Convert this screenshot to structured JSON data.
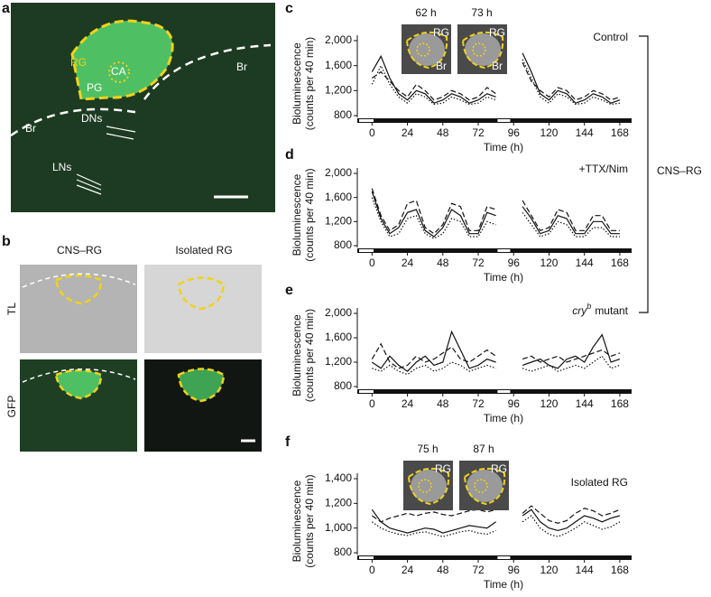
{
  "panel_a": {
    "letter": "a",
    "rg": "RG",
    "ca": "CA",
    "pg": "PG",
    "br": [
      "Br",
      "Br"
    ],
    "dns": "DNs",
    "lns": "LNs"
  },
  "panel_b": {
    "letter": "b",
    "columns": [
      "CNS–RG",
      "Isolated RG"
    ],
    "rows": [
      "TL",
      "GFP"
    ]
  },
  "bracket_label": "CNS–RG",
  "chart_data": [
    {
      "type": "line",
      "letter": "c",
      "annotation": [
        "Control"
      ],
      "insets": [
        {
          "time": "62 h",
          "labels": [
            "RG",
            "Br"
          ]
        },
        {
          "time": "73 h",
          "labels": [
            "RG",
            "Br"
          ]
        }
      ],
      "ylabel": [
        "Bioluminescence",
        "(counts per 40 min)"
      ],
      "xlabel": "Time (h)",
      "xlim": [
        -10,
        176
      ],
      "xticks": [
        0,
        24,
        48,
        72,
        96,
        120,
        144,
        168
      ],
      "ylim": [
        800,
        2000
      ],
      "yticks": [
        800,
        {
          "value": 1200,
          "label": "1,200"
        },
        {
          "value": 1600,
          "label": "1,600"
        },
        {
          "value": 2000,
          "label": "2,000"
        }
      ],
      "x": [
        0,
        6,
        12,
        18,
        24,
        30,
        36,
        42,
        48,
        54,
        60,
        66,
        72,
        78,
        84,
        90,
        96,
        102,
        108,
        114,
        120,
        126,
        132,
        138,
        144,
        150,
        156,
        162,
        168
      ],
      "series": [
        {
          "color": "#111111",
          "style": "solid",
          "values": [
            1500,
            1750,
            1400,
            1150,
            1050,
            1200,
            1150,
            1000,
            1050,
            1150,
            1100,
            1000,
            1050,
            1150,
            1100,
            null,
            null,
            1800,
            1500,
            1150,
            1050,
            1200,
            1150,
            1000,
            1050,
            1150,
            1100,
            1000,
            1050
          ]
        },
        {
          "color": "#111111",
          "style": "dotted",
          "values": [
            1300,
            1600,
            1300,
            1100,
            1000,
            1150,
            1100,
            980,
            1000,
            1100,
            1050,
            980,
            1000,
            1100,
            1050,
            null,
            null,
            1700,
            1400,
            1100,
            1000,
            1150,
            1100,
            980,
            1000,
            1100,
            1050,
            980,
            1000
          ]
        },
        {
          "color": "#111111",
          "style": "dashed",
          "values": [
            1400,
            1500,
            1350,
            1200,
            1100,
            1300,
            1200,
            1050,
            1100,
            1200,
            1150,
            1050,
            1100,
            1250,
            1150,
            null,
            null,
            1650,
            1350,
            1200,
            1100,
            1250,
            1200,
            1050,
            1100,
            1200,
            1150,
            1050,
            1100
          ]
        }
      ]
    },
    {
      "type": "line",
      "letter": "d",
      "annotation": [
        "+TTX/Nim"
      ],
      "ylabel": [
        "Bioluminescence",
        "(counts per 40 min)"
      ],
      "xlabel": "Time (h)",
      "xlim": [
        -10,
        176
      ],
      "xticks": [
        0,
        24,
        48,
        72,
        96,
        120,
        144,
        168
      ],
      "ylim": [
        800,
        2000
      ],
      "yticks": [
        800,
        {
          "value": 1200,
          "label": "1,200"
        },
        {
          "value": 1600,
          "label": "1,600"
        },
        {
          "value": 2000,
          "label": "2,000"
        }
      ],
      "x": [
        0,
        6,
        12,
        18,
        24,
        30,
        36,
        42,
        48,
        54,
        60,
        66,
        72,
        78,
        84,
        90,
        96,
        102,
        108,
        114,
        120,
        126,
        132,
        138,
        144,
        150,
        156,
        162,
        168
      ],
      "series": [
        {
          "color": "#111111",
          "style": "solid",
          "values": [
            1700,
            1250,
            1000,
            1100,
            1350,
            1400,
            1050,
            950,
            1100,
            1400,
            1300,
            1000,
            1000,
            1350,
            1300,
            null,
            null,
            1450,
            1250,
            1000,
            1050,
            1300,
            1250,
            1000,
            1000,
            1200,
            1200,
            1000,
            1000
          ]
        },
        {
          "color": "#111111",
          "style": "dotted",
          "values": [
            1600,
            1200,
            950,
            1000,
            1250,
            1300,
            1000,
            920,
            1000,
            1250,
            1200,
            950,
            950,
            1200,
            1150,
            null,
            null,
            1350,
            1150,
            950,
            1000,
            1200,
            1150,
            950,
            950,
            1100,
            1100,
            950,
            950
          ]
        },
        {
          "color": "#111111",
          "style": "dashed",
          "values": [
            1750,
            1300,
            1050,
            1150,
            1500,
            1550,
            1100,
            1000,
            1150,
            1500,
            1450,
            1050,
            1050,
            1450,
            1400,
            null,
            null,
            1550,
            1300,
            1050,
            1100,
            1400,
            1350,
            1050,
            1050,
            1300,
            1300,
            1050,
            1050
          ]
        }
      ]
    },
    {
      "type": "line",
      "letter": "e",
      "annotation": [
        "cry",
        "b",
        "mutant"
      ],
      "ylabel": [
        "Bioluminescence",
        "(counts per 40 min)"
      ],
      "xlabel": "Time (h)",
      "xlim": [
        -10,
        176
      ],
      "xticks": [
        0,
        24,
        48,
        72,
        96,
        120,
        144,
        168
      ],
      "ylim": [
        800,
        2000
      ],
      "yticks": [
        800,
        {
          "value": 1200,
          "label": "1,200"
        },
        {
          "value": 1600,
          "label": "1,600"
        },
        {
          "value": 2000,
          "label": "2,000"
        }
      ],
      "x": [
        0,
        6,
        12,
        18,
        24,
        30,
        36,
        42,
        48,
        54,
        60,
        66,
        72,
        78,
        84,
        90,
        96,
        102,
        108,
        114,
        120,
        126,
        132,
        138,
        144,
        150,
        156,
        162,
        168
      ],
      "series": [
        {
          "color": "#111111",
          "style": "solid",
          "values": [
            1200,
            1100,
            1300,
            1150,
            1050,
            1200,
            1300,
            1150,
            1200,
            1700,
            1400,
            1100,
            1150,
            1250,
            1200,
            null,
            null,
            1150,
            1200,
            1250,
            1150,
            1100,
            1250,
            1300,
            1200,
            1450,
            1650,
            1200,
            1250
          ]
        },
        {
          "color": "#111111",
          "style": "dotted",
          "values": [
            1100,
            1050,
            1150,
            1050,
            1000,
            1100,
            1150,
            1050,
            1100,
            1200,
            1150,
            1050,
            1100,
            1150,
            1100,
            null,
            null,
            1100,
            1050,
            1100,
            1150,
            1050,
            1100,
            1150,
            1100,
            1200,
            1300,
            1100,
            1150
          ]
        },
        {
          "color": "#111111",
          "style": "dashed",
          "values": [
            1250,
            1500,
            1200,
            1100,
            1150,
            1300,
            1200,
            1250,
            1350,
            1450,
            1250,
            1200,
            1300,
            1400,
            1300,
            null,
            null,
            1250,
            1300,
            1200,
            1250,
            1300,
            1200,
            1250,
            1300,
            1350,
            1400,
            1300,
            1350
          ]
        }
      ]
    },
    {
      "type": "line",
      "letter": "f",
      "annotation": [
        "Isolated RG"
      ],
      "insets": [
        {
          "time": "75 h",
          "labels": [
            "RG"
          ]
        },
        {
          "time": "87 h",
          "labels": [
            "RG"
          ]
        }
      ],
      "ylabel": [
        "Bioluminescence",
        "(counts per 40 min)"
      ],
      "xlabel": "Time (h)",
      "xlim": [
        -10,
        176
      ],
      "xticks": [
        0,
        24,
        48,
        72,
        96,
        120,
        144,
        168
      ],
      "ylim": [
        800,
        1400
      ],
      "yticks": [
        800,
        {
          "value": 1000,
          "label": "1,000"
        },
        {
          "value": 1200,
          "label": "1,200"
        },
        {
          "value": 1400,
          "label": "1,400"
        }
      ],
      "x": [
        0,
        6,
        12,
        18,
        24,
        30,
        36,
        42,
        48,
        54,
        60,
        66,
        72,
        78,
        84,
        90,
        96,
        102,
        108,
        114,
        120,
        126,
        132,
        138,
        144,
        150,
        156,
        162,
        168
      ],
      "series": [
        {
          "color": "#111111",
          "style": "solid",
          "values": [
            1150,
            1050,
            1000,
            980,
            960,
            980,
            1000,
            990,
            960,
            980,
            1000,
            1020,
            1010,
            1000,
            1050,
            null,
            null,
            1100,
            1150,
            1050,
            1000,
            980,
            1000,
            1050,
            1100,
            1080,
            1050,
            1080,
            1100
          ]
        },
        {
          "color": "#111111",
          "style": "dashed",
          "values": [
            1100,
            1050,
            1080,
            1100,
            1120,
            1100,
            1120,
            1130,
            1110,
            1100,
            1120,
            1140,
            1150,
            1130,
            1150,
            null,
            null,
            1120,
            1180,
            1120,
            1060,
            1040,
            1060,
            1120,
            1160,
            1140,
            1100,
            1120,
            1150
          ]
        },
        {
          "color": "#111111",
          "style": "dotted",
          "values": [
            1050,
            1000,
            970,
            950,
            940,
            960,
            970,
            950,
            930,
            950,
            970,
            980,
            960,
            950,
            980,
            null,
            null,
            1050,
            1100,
            1000,
            950,
            930,
            960,
            1000,
            1050,
            1020,
            990,
            1010,
            1050
          ]
        }
      ]
    }
  ]
}
